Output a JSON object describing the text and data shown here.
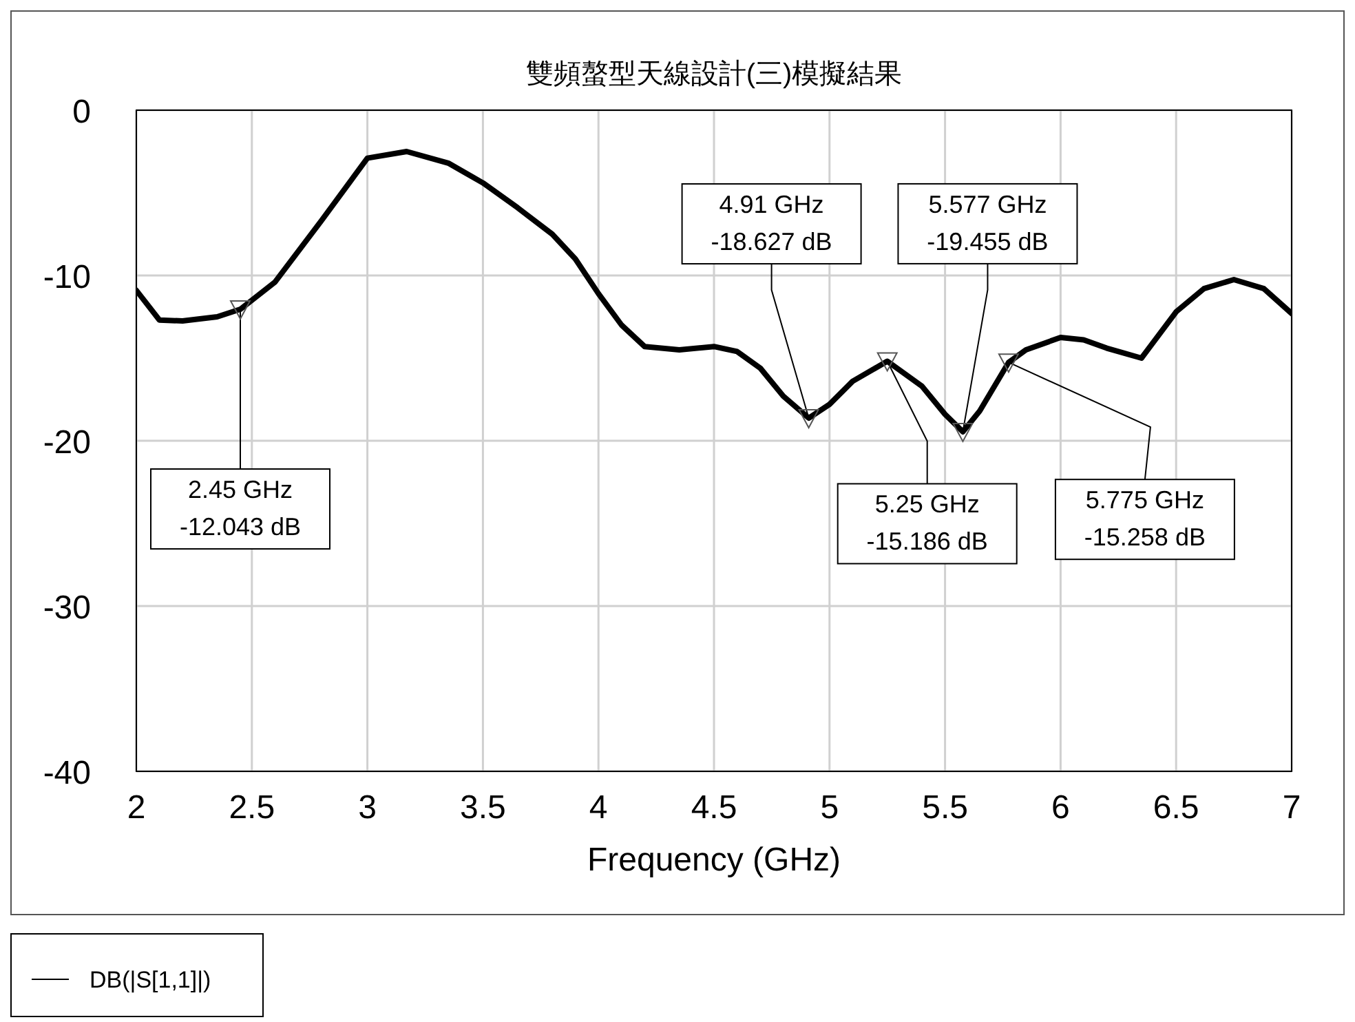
{
  "chart_data": {
    "type": "line",
    "title": "雙頻螯型天線設計(三)模擬結果",
    "xlabel": "Frequency (GHz)",
    "xlim": [
      2,
      7
    ],
    "xticks": [
      2,
      2.5,
      3,
      3.5,
      4,
      4.5,
      5,
      5.5,
      6,
      6.5,
      7
    ],
    "ylim": [
      -40,
      0
    ],
    "yticks": [
      -40,
      -30,
      -20,
      -10,
      0
    ],
    "grid": true,
    "legend": "bottom left",
    "line_style": "solid",
    "marker": "none",
    "series": [
      {
        "name": "DB(|S[1,1]|)",
        "color": "#000000",
        "x": [
          2,
          2.1,
          2.2,
          2.35,
          2.45,
          2.6,
          2.8,
          3.0,
          3.17,
          3.35,
          3.5,
          3.65,
          3.8,
          3.9,
          4.0,
          4.1,
          4.2,
          4.35,
          4.5,
          4.6,
          4.7,
          4.8,
          4.91,
          5.0,
          5.1,
          5.25,
          5.4,
          5.5,
          5.577,
          5.65,
          5.775,
          5.85,
          6.0,
          6.1,
          6.2,
          6.35,
          6.5,
          6.62,
          6.75,
          6.88,
          7.0
        ],
        "values": [
          -10.9,
          -12.7,
          -12.75,
          -12.5,
          -12.043,
          -10.4,
          -6.7,
          -2.9,
          -2.5,
          -3.2,
          -4.4,
          -5.9,
          -7.5,
          -9.0,
          -11.1,
          -13.0,
          -14.3,
          -14.5,
          -14.3,
          -14.6,
          -15.6,
          -17.3,
          -18.627,
          -17.8,
          -16.4,
          -15.186,
          -16.7,
          -18.4,
          -19.455,
          -18.2,
          -15.258,
          -14.5,
          -13.75,
          -13.9,
          -14.4,
          -15.0,
          -12.2,
          -10.8,
          -10.25,
          -10.8,
          -12.3
        ]
      }
    ],
    "annotations": [
      {
        "text": "2.45 GHz\n-12.043 dB",
        "x": 2.45,
        "y": -12.043
      },
      {
        "text": "4.91 GHz\n-18.627 dB",
        "x": 4.91,
        "y": -18.627
      },
      {
        "text": "5.25 GHz\n-15.186 dB",
        "x": 5.25,
        "y": -15.186
      },
      {
        "text": "5.577 GHz\n-19.455 dB",
        "x": 5.577,
        "y": -19.455
      },
      {
        "text": "5.775 GHz\n-15.258 dB",
        "x": 5.775,
        "y": -15.258
      }
    ]
  }
}
